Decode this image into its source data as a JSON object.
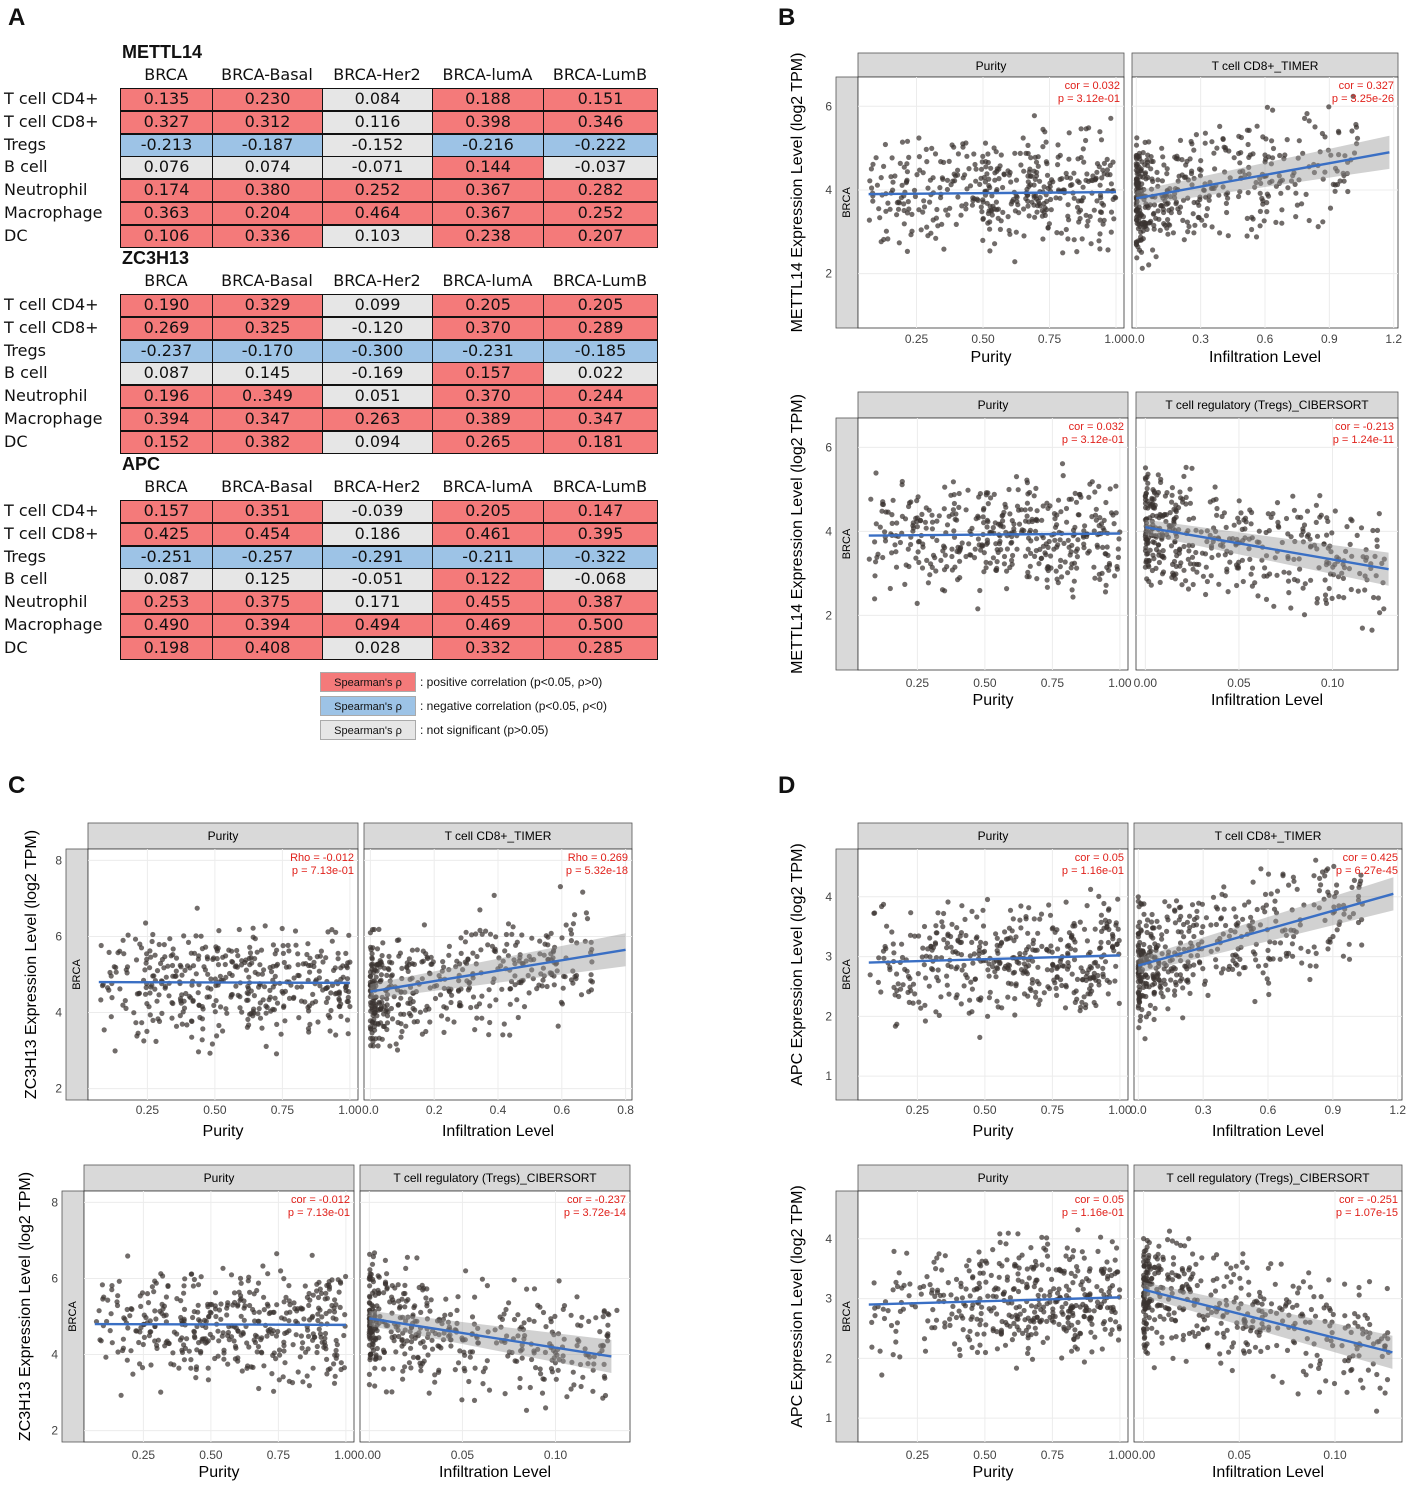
{
  "panels": {
    "A": "A",
    "B": "B",
    "C": "C",
    "D": "D"
  },
  "table": {
    "columns": [
      "BRCA",
      "BRCA-Basal",
      "BRCA-Her2",
      "BRCA-lumA",
      "BRCA-LumB"
    ],
    "rows": [
      "T cell CD4+",
      "T cell CD8+",
      "Tregs",
      "B cell",
      "Neutrophil",
      "Macrophage",
      "DC"
    ],
    "genes": [
      {
        "name": "METTL14",
        "values": [
          [
            "0.135",
            "0.230",
            "0.084",
            "0.188",
            "0.151"
          ],
          [
            "0.327",
            "0.312",
            "0.116",
            "0.398",
            "0.346"
          ],
          [
            "-0.213",
            "-0.187",
            "-0.152",
            "-0.216",
            "-0.222"
          ],
          [
            "0.076",
            "0.074",
            "-0.071",
            "0.144",
            "-0.037"
          ],
          [
            "0.174",
            "0.380",
            "0.252",
            "0.367",
            "0.282"
          ],
          [
            "0.363",
            "0.204",
            "0.464",
            "0.367",
            "0.252"
          ],
          [
            "0.106",
            "0.336",
            "0.103",
            "0.238",
            "0.207"
          ]
        ],
        "sig": [
          [
            "p",
            "p",
            "n",
            "p",
            "p"
          ],
          [
            "p",
            "p",
            "n",
            "p",
            "p"
          ],
          [
            "m",
            "m",
            "n",
            "m",
            "m"
          ],
          [
            "n",
            "n",
            "n",
            "p",
            "n"
          ],
          [
            "p",
            "p",
            "p",
            "p",
            "p"
          ],
          [
            "p",
            "p",
            "p",
            "p",
            "p"
          ],
          [
            "p",
            "p",
            "n",
            "p",
            "p"
          ]
        ]
      },
      {
        "name": "ZC3H13",
        "values": [
          [
            "0.190",
            "0.329",
            "0.099",
            "0.205",
            "0.205"
          ],
          [
            "0.269",
            "0.325",
            "-0.120",
            "0.370",
            "0.289"
          ],
          [
            "-0.237",
            "-0.170",
            "-0.300",
            "-0.231",
            "-0.185"
          ],
          [
            "0.087",
            "0.145",
            "-0.169",
            "0.157",
            "0.022"
          ],
          [
            "0.196",
            "0..349",
            "0.051",
            "0.370",
            "0.244"
          ],
          [
            "0.394",
            "0.347",
            "0.263",
            "0.389",
            "0.347"
          ],
          [
            "0.152",
            "0.382",
            "0.094",
            "0.265",
            "0.181"
          ]
        ],
        "sig": [
          [
            "p",
            "p",
            "n",
            "p",
            "p"
          ],
          [
            "p",
            "p",
            "n",
            "p",
            "p"
          ],
          [
            "m",
            "m",
            "m",
            "m",
            "m"
          ],
          [
            "n",
            "n",
            "n",
            "p",
            "n"
          ],
          [
            "p",
            "p",
            "n",
            "p",
            "p"
          ],
          [
            "p",
            "p",
            "p",
            "p",
            "p"
          ],
          [
            "p",
            "p",
            "n",
            "p",
            "p"
          ]
        ]
      },
      {
        "name": "APC",
        "values": [
          [
            "0.157",
            "0.351",
            "-0.039",
            "0.205",
            "0.147"
          ],
          [
            "0.425",
            "0.454",
            "0.186",
            "0.461",
            "0.395"
          ],
          [
            "-0.251",
            "-0.257",
            "-0.291",
            "-0.211",
            "-0.322"
          ],
          [
            "0.087",
            "0.125",
            "-0.051",
            "0.122",
            "-0.068"
          ],
          [
            "0.253",
            "0.375",
            "0.171",
            "0.455",
            "0.387"
          ],
          [
            "0.490",
            "0.394",
            "0.494",
            "0.469",
            "0.500"
          ],
          [
            "0.198",
            "0.408",
            "0.028",
            "0.332",
            "0.285"
          ]
        ],
        "sig": [
          [
            "p",
            "p",
            "n",
            "p",
            "p"
          ],
          [
            "p",
            "p",
            "n",
            "p",
            "p"
          ],
          [
            "m",
            "m",
            "m",
            "m",
            "m"
          ],
          [
            "n",
            "n",
            "n",
            "p",
            "n"
          ],
          [
            "p",
            "p",
            "n",
            "p",
            "p"
          ],
          [
            "p",
            "p",
            "p",
            "p",
            "p"
          ],
          [
            "p",
            "p",
            "n",
            "p",
            "p"
          ]
        ]
      }
    ],
    "legend": [
      {
        "key": "Spearman's ρ",
        "text": ": positive correlation (p<0.05, ρ>0)",
        "color": "#f47a7a"
      },
      {
        "key": "Spearman's ρ",
        "text": ": negative correlation (p<0.05, ρ<0)",
        "color": "#9dc3e6"
      },
      {
        "key": "Spearman's ρ",
        "text": ": not significant (p>0.05)",
        "color": "#e6e6e6"
      }
    ]
  },
  "colors": {
    "points": "#3a3330",
    "line": "#3a6fc4",
    "stat": "#e0201a",
    "strip": "#d9d9d9"
  },
  "chart_data": [
    {
      "type": "scatter",
      "panel": "B",
      "ylabel": "METTL14 Expression Level (log2 TPM)",
      "cancer": "BRCA",
      "ylim": [
        0.7,
        6.7
      ],
      "yticks": [
        2,
        4,
        6
      ],
      "facets": [
        {
          "title": "Purity",
          "xlabel": "Purity",
          "xlim": [
            0.03,
            1.03
          ],
          "xticks": [
            0.25,
            0.5,
            0.75,
            1.0
          ],
          "xticklabels": [
            "0.25",
            "0.50",
            "0.75",
            "1.00"
          ],
          "stat1": "cor = 0.032",
          "stat2": "p = 3.12e-01",
          "fit": [
            [
              0.07,
              3.9
            ],
            [
              1.0,
              3.95
            ]
          ],
          "band": false,
          "cloud": "purity",
          "seed": 11
        },
        {
          "title": "T cell CD8+_TIMER",
          "xlabel": "Infiltration Level",
          "xlim": [
            -0.02,
            1.22
          ],
          "xticks": [
            0,
            0.3,
            0.6,
            0.9,
            1.2
          ],
          "xticklabels": [
            "0.0",
            "0.3",
            "0.6",
            "0.9",
            "1.2"
          ],
          "stat1": "cor = 0.327",
          "stat2": "p = 3.25e-26",
          "fit": [
            [
              0.0,
              3.8
            ],
            [
              1.18,
              4.9
            ]
          ],
          "band": true,
          "cloud": "infil",
          "seed": 12
        }
      ]
    },
    {
      "type": "scatter",
      "panel": "B",
      "ylabel": "METTL14 Expression Level (log2 TPM)",
      "cancer": "BRCA",
      "ylim": [
        0.7,
        6.7
      ],
      "yticks": [
        2,
        4,
        6
      ],
      "facets": [
        {
          "title": "Purity",
          "xlabel": "Purity",
          "xlim": [
            0.03,
            1.03
          ],
          "xticks": [
            0.25,
            0.5,
            0.75,
            1.0
          ],
          "xticklabels": [
            "0.25",
            "0.50",
            "0.75",
            "1.00"
          ],
          "stat1": "cor = 0.032",
          "stat2": "p = 3.12e-01",
          "fit": [
            [
              0.07,
              3.9
            ],
            [
              1.0,
              3.95
            ]
          ],
          "band": false,
          "cloud": "purity",
          "seed": 21
        },
        {
          "title": "T cell regulatory (Tregs)_CIBERSORT",
          "xlabel": "Infiltration Level",
          "xlim": [
            -0.005,
            0.135
          ],
          "xticks": [
            0,
            0.05,
            0.1
          ],
          "xticklabels": [
            "0.00",
            "0.05",
            "0.10"
          ],
          "stat1": "cor = -0.213",
          "stat2": "p = 1.24e-11",
          "fit": [
            [
              0.0,
              4.1
            ],
            [
              0.13,
              3.1
            ]
          ],
          "band": true,
          "cloud": "treg",
          "seed": 22
        }
      ]
    },
    {
      "type": "scatter",
      "panel": "C",
      "ylabel": "ZC3H13 Expression Level (log2 TPM)",
      "cancer": "BRCA",
      "ylim": [
        1.7,
        8.3
      ],
      "yticks": [
        2,
        4,
        6,
        8
      ],
      "facets": [
        {
          "title": "Purity",
          "xlabel": "Purity",
          "xlim": [
            0.03,
            1.03
          ],
          "xticks": [
            0.25,
            0.5,
            0.75,
            1.0
          ],
          "xticklabels": [
            "0.25",
            "0.50",
            "0.75",
            "1.00"
          ],
          "stat1": "Rho = -0.012",
          "stat2": "p = 7.13e-01",
          "fit": [
            [
              0.07,
              4.8
            ],
            [
              1.0,
              4.78
            ]
          ],
          "band": false,
          "cloud": "purity",
          "seed": 31
        },
        {
          "title": "T cell CD8+_TIMER",
          "xlabel": "Infiltration Level",
          "xlim": [
            -0.02,
            0.82
          ],
          "xticks": [
            0,
            0.2,
            0.4,
            0.6,
            0.8
          ],
          "xticklabels": [
            "0.0",
            "0.2",
            "0.4",
            "0.6",
            "0.8"
          ],
          "stat1": "Rho = 0.269",
          "stat2": "p = 5.32e-18",
          "fit": [
            [
              0.0,
              4.55
            ],
            [
              0.8,
              5.65
            ]
          ],
          "band": true,
          "cloud": "infil",
          "seed": 32
        }
      ]
    },
    {
      "type": "scatter",
      "panel": "C",
      "ylabel": "ZC3H13 Expression Level (log2 TPM)",
      "cancer": "BRCA",
      "ylim": [
        1.7,
        8.3
      ],
      "yticks": [
        2,
        4,
        6,
        8
      ],
      "facets": [
        {
          "title": "Purity",
          "xlabel": "Purity",
          "xlim": [
            0.03,
            1.03
          ],
          "xticks": [
            0.25,
            0.5,
            0.75,
            1.0
          ],
          "xticklabels": [
            "0.25",
            "0.50",
            "0.75",
            "1.00"
          ],
          "stat1": "cor = -0.012",
          "stat2": "p = 7.13e-01",
          "fit": [
            [
              0.07,
              4.8
            ],
            [
              1.0,
              4.78
            ]
          ],
          "band": false,
          "cloud": "purity",
          "seed": 41
        },
        {
          "title": "T cell regulatory (Tregs)_CIBERSORT",
          "xlabel": "Infiltration Level",
          "xlim": [
            -0.005,
            0.14
          ],
          "xticks": [
            0,
            0.05,
            0.1
          ],
          "xticklabels": [
            "0.00",
            "0.05",
            "0.10"
          ],
          "stat1": "cor = -0.237",
          "stat2": "p = 3.72e-14",
          "fit": [
            [
              0.0,
              4.95
            ],
            [
              0.13,
              3.95
            ]
          ],
          "band": true,
          "cloud": "treg",
          "seed": 42
        }
      ]
    },
    {
      "type": "scatter",
      "panel": "D",
      "ylabel": "APC Expression Level (log2 TPM)",
      "cancer": "BRCA",
      "ylim": [
        0.6,
        4.8
      ],
      "yticks": [
        1,
        2,
        3,
        4
      ],
      "facets": [
        {
          "title": "Purity",
          "xlabel": "Purity",
          "xlim": [
            0.03,
            1.03
          ],
          "xticks": [
            0.25,
            0.5,
            0.75,
            1.0
          ],
          "xticklabels": [
            "0.25",
            "0.50",
            "0.75",
            "1.00"
          ],
          "stat1": "cor = 0.05",
          "stat2": "p = 1.16e-01",
          "fit": [
            [
              0.07,
              2.9
            ],
            [
              1.0,
              3.02
            ]
          ],
          "band": false,
          "cloud": "purity",
          "seed": 51
        },
        {
          "title": "T cell CD8+_TIMER",
          "xlabel": "Infiltration Level",
          "xlim": [
            -0.02,
            1.22
          ],
          "xticks": [
            0,
            0.3,
            0.6,
            0.9,
            1.2
          ],
          "xticklabels": [
            "0.0",
            "0.3",
            "0.6",
            "0.9",
            "1.2"
          ],
          "stat1": "cor = 0.425",
          "stat2": "p = 6.27e-45",
          "fit": [
            [
              0.0,
              2.85
            ],
            [
              1.18,
              4.05
            ]
          ],
          "band": true,
          "cloud": "infil",
          "seed": 52
        }
      ]
    },
    {
      "type": "scatter",
      "panel": "D",
      "ylabel": "APC Expression Level (log2 TPM)",
      "cancer": "BRCA",
      "ylim": [
        0.6,
        4.8
      ],
      "yticks": [
        1,
        2,
        3,
        4
      ],
      "facets": [
        {
          "title": "Purity",
          "xlabel": "Purity",
          "xlim": [
            0.03,
            1.03
          ],
          "xticks": [
            0.25,
            0.5,
            0.75,
            1.0
          ],
          "xticklabels": [
            "0.25",
            "0.50",
            "0.75",
            "1.00"
          ],
          "stat1": "cor = 0.05",
          "stat2": "p = 1.16e-01",
          "fit": [
            [
              0.07,
              2.9
            ],
            [
              1.0,
              3.02
            ]
          ],
          "band": false,
          "cloud": "purity",
          "seed": 61
        },
        {
          "title": "T cell regulatory (Tregs)_CIBERSORT",
          "xlabel": "Infiltration Level",
          "xlim": [
            -0.005,
            0.135
          ],
          "xticks": [
            0,
            0.05,
            0.1
          ],
          "xticklabels": [
            "0.00",
            "0.05",
            "0.10"
          ],
          "stat1": "cor = -0.251",
          "stat2": "p = 1.07e-15",
          "fit": [
            [
              0.0,
              3.15
            ],
            [
              0.13,
              2.1
            ]
          ],
          "band": true,
          "cloud": "treg",
          "seed": 62
        }
      ]
    }
  ]
}
